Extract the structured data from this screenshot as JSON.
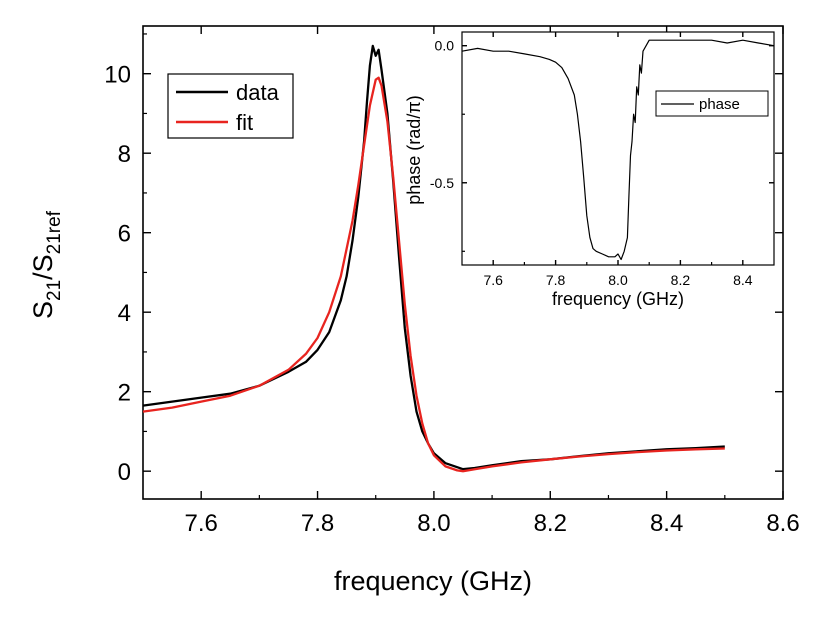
{
  "chart_data": [
    {
      "id": "main",
      "type": "line",
      "xlabel": "frequency (GHz)",
      "ylabel_main": "S",
      "ylabel_sub1": "21",
      "ylabel_slash": "/S",
      "ylabel_sub2": "21ref",
      "xlim": [
        7.5,
        8.6
      ],
      "ylim": [
        -0.7,
        11.2
      ],
      "xticks": [
        7.6,
        7.8,
        8.0,
        8.2,
        8.4,
        8.6
      ],
      "xtick_labels": [
        "7.6",
        "7.8",
        "8.0",
        "8.2",
        "8.4",
        "8.6"
      ],
      "yticks": [
        0,
        2,
        4,
        6,
        8,
        10
      ],
      "ytick_labels": [
        "0",
        "2",
        "4",
        "6",
        "8",
        "10"
      ],
      "legend_position": "top-left",
      "series": [
        {
          "name": "data",
          "color": "#000000",
          "x": [
            7.5,
            7.55,
            7.6,
            7.65,
            7.7,
            7.75,
            7.78,
            7.8,
            7.82,
            7.84,
            7.85,
            7.86,
            7.87,
            7.88,
            7.885,
            7.89,
            7.895,
            7.9,
            7.905,
            7.91,
            7.92,
            7.93,
            7.94,
            7.95,
            7.96,
            7.97,
            7.98,
            7.99,
            8.0,
            8.02,
            8.04,
            8.05,
            8.07,
            8.1,
            8.15,
            8.2,
            8.25,
            8.3,
            8.35,
            8.4,
            8.45,
            8.5
          ],
          "y": [
            1.65,
            1.75,
            1.85,
            1.95,
            2.15,
            2.5,
            2.75,
            3.05,
            3.5,
            4.3,
            4.9,
            5.8,
            6.9,
            8.3,
            9.3,
            10.2,
            10.7,
            10.45,
            10.6,
            10.1,
            9.0,
            7.3,
            5.4,
            3.6,
            2.4,
            1.5,
            1.0,
            0.7,
            0.45,
            0.2,
            0.1,
            0.05,
            0.08,
            0.15,
            0.25,
            0.3,
            0.38,
            0.45,
            0.5,
            0.55,
            0.58,
            0.62
          ]
        },
        {
          "name": "fit",
          "color": "#e8241f",
          "x": [
            7.5,
            7.55,
            7.6,
            7.65,
            7.7,
            7.75,
            7.78,
            7.8,
            7.82,
            7.84,
            7.86,
            7.87,
            7.88,
            7.89,
            7.9,
            7.905,
            7.91,
            7.92,
            7.93,
            7.94,
            7.95,
            7.96,
            7.97,
            7.98,
            7.99,
            8.0,
            8.02,
            8.04,
            8.05,
            8.07,
            8.1,
            8.15,
            8.2,
            8.25,
            8.3,
            8.35,
            8.4,
            8.45,
            8.5
          ],
          "y": [
            1.5,
            1.6,
            1.75,
            1.9,
            2.15,
            2.55,
            2.95,
            3.35,
            4.0,
            4.9,
            6.3,
            7.2,
            8.2,
            9.2,
            9.85,
            9.9,
            9.7,
            8.8,
            7.4,
            5.8,
            4.2,
            2.9,
            1.9,
            1.2,
            0.7,
            0.4,
            0.12,
            0.02,
            0.0,
            0.05,
            0.12,
            0.22,
            0.3,
            0.37,
            0.43,
            0.48,
            0.52,
            0.55,
            0.57
          ]
        }
      ]
    },
    {
      "id": "inset",
      "type": "line",
      "xlabel": "frequency (GHz)",
      "ylabel": "phase (rad/π)",
      "xlim": [
        7.5,
        8.5
      ],
      "ylim": [
        -0.8,
        0.05
      ],
      "xticks": [
        7.6,
        7.8,
        8.0,
        8.2,
        8.4
      ],
      "xtick_labels": [
        "7.6",
        "7.8",
        "8.0",
        "8.2",
        "8.4"
      ],
      "yticks": [
        0.0,
        -0.5
      ],
      "ytick_labels": [
        "0.0",
        "-0.5"
      ],
      "legend_position": "top-right",
      "series": [
        {
          "name": "phase",
          "color": "#000000",
          "x": [
            7.5,
            7.55,
            7.6,
            7.65,
            7.7,
            7.75,
            7.78,
            7.8,
            7.82,
            7.84,
            7.86,
            7.87,
            7.88,
            7.89,
            7.9,
            7.91,
            7.92,
            7.93,
            7.95,
            7.97,
            7.99,
            8.0,
            8.01,
            8.02,
            8.03,
            8.035,
            8.04,
            8.045,
            8.05,
            8.055,
            8.06,
            8.065,
            8.07,
            8.075,
            8.08,
            8.09,
            8.1,
            8.15,
            8.2,
            8.25,
            8.3,
            8.35,
            8.4,
            8.45,
            8.5
          ],
          "y": [
            -0.02,
            -0.01,
            -0.02,
            -0.02,
            -0.03,
            -0.04,
            -0.05,
            -0.06,
            -0.08,
            -0.12,
            -0.18,
            -0.25,
            -0.35,
            -0.48,
            -0.62,
            -0.7,
            -0.74,
            -0.75,
            -0.76,
            -0.77,
            -0.77,
            -0.76,
            -0.78,
            -0.75,
            -0.7,
            -0.55,
            -0.4,
            -0.35,
            -0.25,
            -0.28,
            -0.15,
            -0.18,
            -0.07,
            -0.1,
            -0.02,
            0.0,
            0.02,
            0.02,
            0.02,
            0.02,
            0.02,
            0.01,
            0.02,
            0.01,
            0.0
          ]
        }
      ]
    }
  ]
}
